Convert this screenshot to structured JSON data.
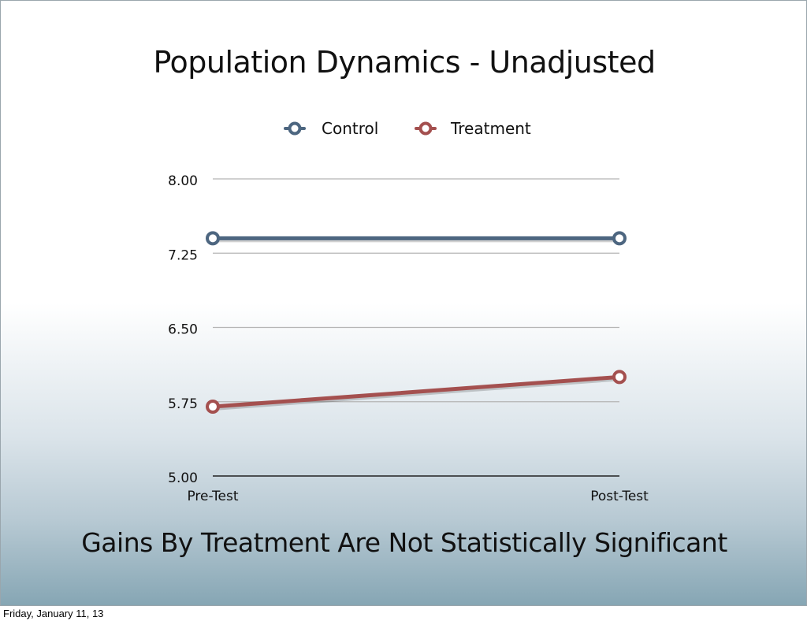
{
  "slide": {
    "title": "Population Dynamics - Unadjusted",
    "subtitle": "Gains By Treatment Are Not Statistically Significant"
  },
  "footer": {
    "date": "Friday, January 11, 13"
  },
  "chart_data": {
    "type": "line",
    "categories": [
      "Pre-Test",
      "Post-Test"
    ],
    "series": [
      {
        "name": "Control",
        "values": [
          7.4,
          7.4
        ],
        "color": "#4d6680"
      },
      {
        "name": "Treatment",
        "values": [
          5.7,
          6.0
        ],
        "color": "#a4504f"
      }
    ],
    "yticks": [
      "5.00",
      "5.75",
      "6.50",
      "7.25",
      "8.00"
    ],
    "ylim": [
      5.0,
      8.0
    ],
    "grid": true,
    "legend": "top-center",
    "marker": "open-circle"
  }
}
